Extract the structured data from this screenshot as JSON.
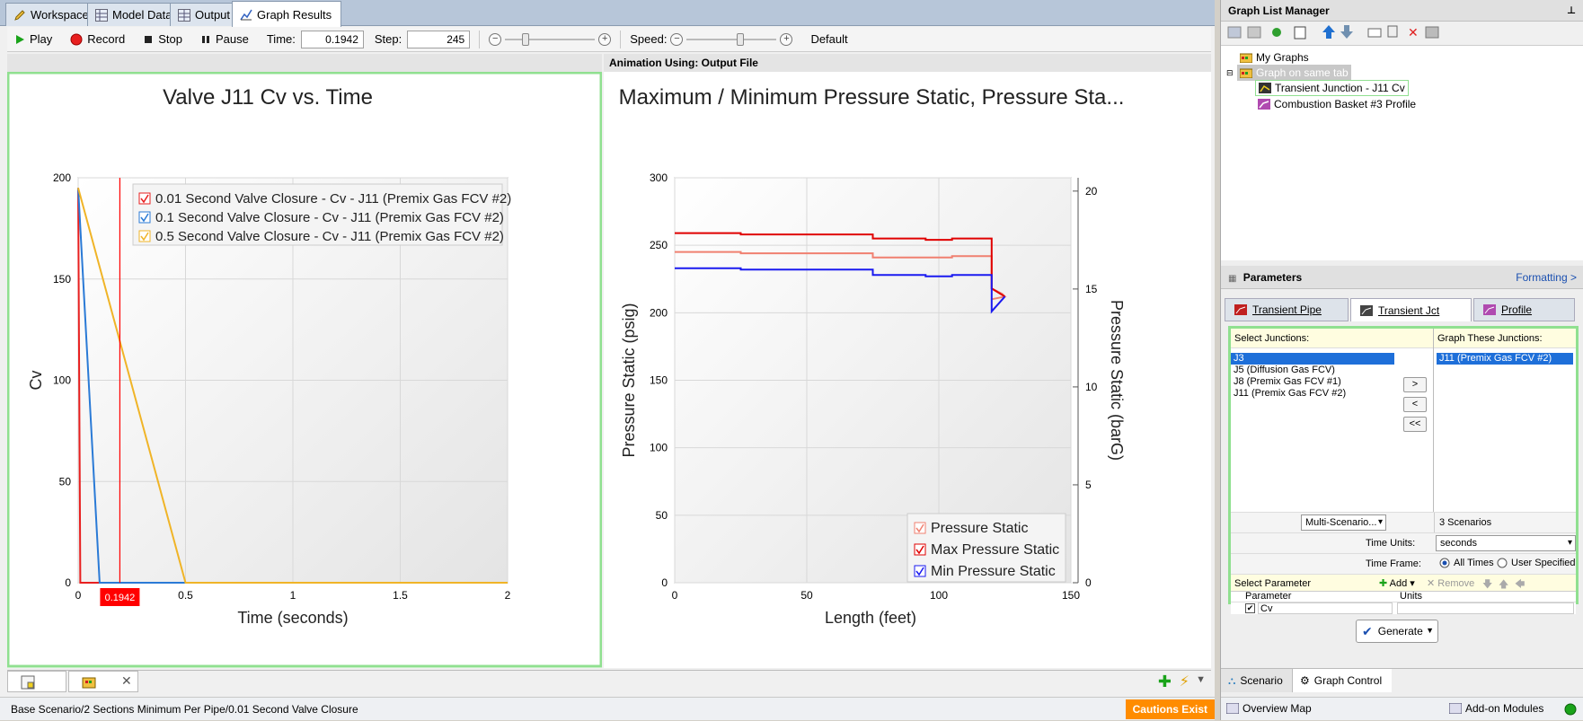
{
  "tabs": [
    "Workspace",
    "Model Data",
    "Output",
    "Graph Results"
  ],
  "toolbar": {
    "play": "Play",
    "record": "Record",
    "stop": "Stop",
    "pause": "Pause",
    "time_label": "Time:",
    "time_value": "0.1942",
    "step_label": "Step:",
    "step_value": "245",
    "speed_label": "Speed:",
    "default_label": "Default",
    "slider_levels": {
      "time": 0.2,
      "speed": 0.6
    }
  },
  "right_panel_header": "Animation Using: Output File",
  "colors": {
    "red": "#e81f1f",
    "blue": "#2a7ad6",
    "orange": "#f0b427",
    "salmon": "#f08070",
    "dred": "#e00000",
    "dblue": "#1a1af0",
    "accent_green": "#90e090",
    "cursor_red": "#ff0000"
  },
  "chart_data": [
    {
      "type": "line",
      "title": "Valve J11 Cv vs. Time",
      "xlabel": "Time (seconds)",
      "ylabel": "Cv",
      "xlim": [
        0,
        2
      ],
      "ylim": [
        0,
        200
      ],
      "xticks": [
        "0",
        "0.5",
        "1",
        "1.5",
        "2"
      ],
      "yticks": [
        "0",
        "50",
        "100",
        "150",
        "200"
      ],
      "cursor": {
        "x": 0.1942,
        "label": "0.1942"
      },
      "legend_position": "top-right",
      "series": [
        {
          "name": "0.01 Second Valve Closure - Cv - J11 (Premix Gas FCV #2)",
          "color": "#e81f1f",
          "x": [
            0,
            0.01,
            2
          ],
          "y": [
            195,
            0,
            0
          ]
        },
        {
          "name": "0.1 Second Valve Closure - Cv - J11 (Premix Gas FCV #2)",
          "color": "#2a7ad6",
          "x": [
            0,
            0.1,
            2
          ],
          "y": [
            195,
            0,
            0
          ]
        },
        {
          "name": "0.5 Second Valve Closure - Cv - J11 (Premix Gas FCV #2)",
          "color": "#f0b427",
          "x": [
            0,
            0.5,
            2
          ],
          "y": [
            195,
            0,
            0
          ]
        }
      ]
    },
    {
      "type": "line",
      "title": "Maximum / Minimum Pressure Static, Pressure Sta...",
      "xlabel": "Length (feet)",
      "ylabel": "Pressure Static (psig)",
      "ylabel2": "Pressure Static (barG)",
      "xlim": [
        0,
        150
      ],
      "ylim": [
        0,
        300
      ],
      "ylim2": [
        0,
        20.68
      ],
      "xticks": [
        "0",
        "50",
        "100",
        "150"
      ],
      "yticks": [
        "0",
        "50",
        "100",
        "150",
        "200",
        "250",
        "300"
      ],
      "yticks2": [
        "0",
        "5",
        "10",
        "15",
        "20"
      ],
      "legend_position": "bottom-right",
      "series": [
        {
          "name": "Pressure Static",
          "color": "#f08070",
          "x": [
            0,
            25,
            25,
            75,
            75,
            105,
            105,
            120,
            120,
            122,
            124,
            125,
            120
          ],
          "y": [
            245,
            245,
            244,
            244,
            241,
            241,
            242,
            242,
            218,
            216,
            214,
            212,
            210
          ]
        },
        {
          "name": "Max Pressure Static",
          "color": "#e00000",
          "x": [
            0,
            25,
            25,
            75,
            75,
            95,
            95,
            105,
            105,
            120,
            120,
            125
          ],
          "y": [
            259,
            259,
            258,
            258,
            255,
            255,
            254,
            254,
            255,
            255,
            218,
            212
          ]
        },
        {
          "name": "Min Pressure Static",
          "color": "#1a1af0",
          "x": [
            0,
            25,
            25,
            75,
            75,
            95,
            95,
            105,
            105,
            120,
            120,
            125
          ],
          "y": [
            233,
            233,
            232,
            232,
            228,
            228,
            227,
            227,
            228,
            228,
            201,
            212
          ]
        }
      ]
    }
  ],
  "bottom": {
    "status": "Base Scenario/2 Sections Minimum Per Pipe/0.01 Second Valve Closure",
    "cautions": "Cautions Exist"
  },
  "graph_list": {
    "title": "Graph List Manager",
    "items": [
      "My Graphs",
      "Graph on same tab",
      "Transient Junction - J11 Cv",
      "Combustion Basket #3 Profile"
    ]
  },
  "parameters": {
    "title": "Parameters",
    "formatting": "Formatting >",
    "tabs": [
      "Transient Pipe",
      "Transient Jct",
      "Profile"
    ],
    "select_label": "Select Junctions:",
    "graph_label": "Graph These Junctions:",
    "junctions": [
      "J3",
      "J5 (Diffusion Gas FCV)",
      "J8 (Premix Gas FCV #1)",
      "J11 (Premix Gas FCV #2)"
    ],
    "selected": [
      "J11 (Premix Gas FCV #2)"
    ],
    "btn_add": ">",
    "btn_remove": "<",
    "btn_remove_all": "<<",
    "multi_scenario": "Multi-Scenario...",
    "scenarios": "3 Scenarios",
    "time_units_label": "Time Units:",
    "time_units": "seconds",
    "time_frame_label": "Time Frame:",
    "all_times": "All Times",
    "user_specified": "User Specified",
    "select_param_label": "Select Parameter",
    "add": "Add",
    "remove": "Remove",
    "col_param": "Parameter",
    "col_units": "Units",
    "param_value": "Cv",
    "generate": "Generate"
  },
  "right_bottom_tabs": [
    "Scenario",
    "Graph Control"
  ],
  "right_status": {
    "overview": "Overview Map",
    "addon": "Add-on Modules"
  }
}
